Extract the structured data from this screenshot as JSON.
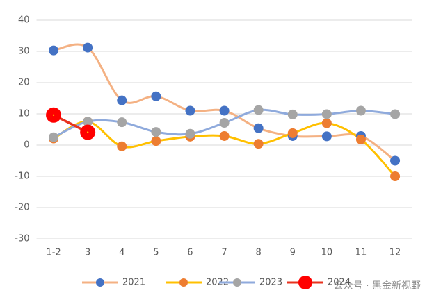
{
  "chart_data": {
    "type": "line",
    "categories": [
      "1-2",
      "3",
      "4",
      "5",
      "6",
      "7",
      "8",
      "9",
      "10",
      "11",
      "12"
    ],
    "series": [
      {
        "name": "2021",
        "color": "#f4b183",
        "marker_color": "#4472c4",
        "values": [
          30.3,
          31.2,
          14.3,
          15.6,
          11.0,
          11.0,
          5.4,
          2.9,
          2.8,
          2.9,
          -5.0
        ]
      },
      {
        "name": "2022",
        "color": "#ffc000",
        "marker_color": "#ed7d31",
        "values": [
          2.1,
          7.5,
          -0.4,
          1.3,
          2.7,
          2.9,
          0.4,
          3.8,
          7.0,
          1.8,
          -10.0
        ]
      },
      {
        "name": "2023",
        "color": "#8faadc",
        "marker_color": "#a5a5a5",
        "values": [
          2.5,
          7.5,
          7.3,
          4.2,
          3.6,
          7.1,
          11.2,
          9.8,
          9.9,
          11.0,
          9.9
        ]
      },
      {
        "name": "2024",
        "color": "#e8331f",
        "marker_color": "#ff0000",
        "values": [
          9.6,
          4.1,
          null,
          null,
          null,
          null,
          null,
          null,
          null,
          null,
          null
        ]
      }
    ],
    "ylim": [
      -30,
      40
    ],
    "yticks": [
      -30,
      -20,
      -10,
      0,
      10,
      20,
      30,
      40
    ],
    "grid": true,
    "smooth": true,
    "legend": "bottom",
    "watermark": "公众号 · 黑金新视野"
  }
}
